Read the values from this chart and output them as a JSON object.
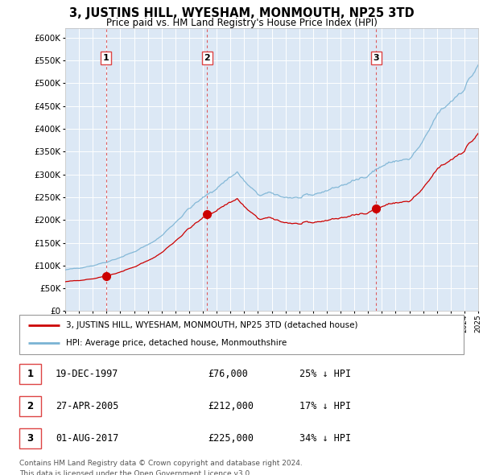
{
  "title": "3, JUSTINS HILL, WYESHAM, MONMOUTH, NP25 3TD",
  "subtitle": "Price paid vs. HM Land Registry's House Price Index (HPI)",
  "footer_line1": "Contains HM Land Registry data © Crown copyright and database right 2024.",
  "footer_line2": "This data is licensed under the Open Government Licence v3.0.",
  "legend_label_red": "3, JUSTINS HILL, WYESHAM, MONMOUTH, NP25 3TD (detached house)",
  "legend_label_blue": "HPI: Average price, detached house, Monmouthshire",
  "sales": [
    {
      "num": 1,
      "date": "19-DEC-1997",
      "price": 76000,
      "pct": "25%",
      "dir": "↓",
      "year": 1997.96
    },
    {
      "num": 2,
      "date": "27-APR-2005",
      "price": 212000,
      "pct": "17%",
      "dir": "↓",
      "year": 2005.32
    },
    {
      "num": 3,
      "date": "01-AUG-2017",
      "price": 225000,
      "pct": "34%",
      "dir": "↓",
      "year": 2017.58
    }
  ],
  "sale_prices": [
    76000,
    212000,
    225000
  ],
  "sale_years": [
    1997.96,
    2005.32,
    2017.58
  ],
  "hpi_color": "#7ab3d4",
  "sale_color": "#cc0000",
  "dashed_color": "#dd4444",
  "background_color": "#dce8f5",
  "ylim": [
    0,
    620000
  ],
  "yticks": [
    0,
    50000,
    100000,
    150000,
    200000,
    250000,
    300000,
    350000,
    400000,
    450000,
    500000,
    550000,
    600000
  ],
  "year_start": 1995,
  "year_end": 2025
}
